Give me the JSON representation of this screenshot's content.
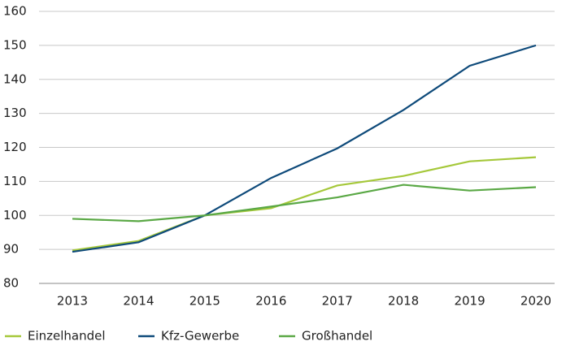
{
  "chart_data": {
    "type": "line",
    "x": [
      "2013",
      "2014",
      "2015",
      "2016",
      "2017",
      "2018",
      "2019",
      "2020"
    ],
    "series": [
      {
        "name": "Einzelhandel",
        "color": "#a5c83a",
        "values": [
          89.7,
          92.5,
          100,
          102.1,
          108.8,
          111.6,
          115.9,
          117.1
        ]
      },
      {
        "name": "Kfz-Gewerbe",
        "color": "#0e4a7a",
        "values": [
          89.3,
          92.1,
          100,
          111,
          119.7,
          131,
          144,
          150
        ]
      },
      {
        "name": "Großhandel",
        "color": "#5aa845",
        "values": [
          99,
          98.3,
          100,
          102.6,
          105.3,
          109,
          107.3,
          108.3
        ]
      }
    ],
    "ylim": [
      80,
      160
    ],
    "yticks": [
      80,
      90,
      100,
      110,
      120,
      130,
      140,
      150,
      160
    ],
    "grid": true
  }
}
